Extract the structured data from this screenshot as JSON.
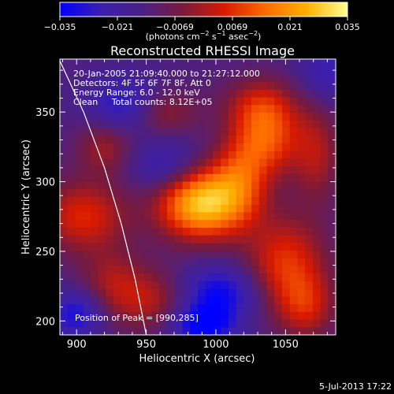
{
  "chart_data": {
    "type": "heatmap",
    "title": "Reconstructed RHESSI Image",
    "xlabel": "Heliocentric X (arcsec)",
    "ylabel": "Heliocentric Y (arcsec)",
    "xlim": [
      888,
      1086
    ],
    "ylim": [
      190,
      388
    ],
    "x_ticks": [
      900,
      950,
      1000,
      1050
    ],
    "y_ticks": [
      200,
      250,
      300,
      350
    ],
    "colorbar": {
      "range": [
        -0.035,
        0.035
      ],
      "ticks": [
        "−0.035",
        "−0.021",
        "−0.0069",
        "0.0069",
        "0.021",
        "0.035"
      ],
      "label_main": "(photons cm",
      "label_exp1": "−2",
      "label_mid": " s",
      "label_exp2": "−1",
      "label_end": " asec",
      "label_exp3": "−2",
      "label_close": ")",
      "colors": [
        "#0000ff",
        "#3b1fb0",
        "#4a2086",
        "#7a1a3a",
        "#d91a00",
        "#ff6a00",
        "#ffb000",
        "#ffff90"
      ]
    },
    "info_lines": [
      "20-Jan-2005 21:09:40.000 to 21:27:12.000",
      "Detectors: 4F 5F 6F 7F 8F, Att 0",
      "Energy Range: 6.0 - 12.0 keV",
      "Clean     Total counts: 8.12E+05"
    ],
    "peak_label": "Position of Peak = [990,285]",
    "peak": [
      990,
      285
    ],
    "limb_curve": [
      [
        886,
        391
      ],
      [
        905,
        350
      ],
      [
        920,
        310
      ],
      [
        932,
        270
      ],
      [
        942,
        230
      ],
      [
        950,
        190
      ]
    ],
    "blobs": [
      {
        "x": 990,
        "y": 285,
        "amp": 0.043,
        "sx": 22,
        "sy": 18
      },
      {
        "x": 1018,
        "y": 305,
        "amp": 0.018,
        "sx": 14,
        "sy": 22
      },
      {
        "x": 1038,
        "y": 330,
        "amp": 0.022,
        "sx": 16,
        "sy": 18
      },
      {
        "x": 1032,
        "y": 355,
        "amp": 0.016,
        "sx": 18,
        "sy": 14
      },
      {
        "x": 1050,
        "y": 240,
        "amp": 0.022,
        "sx": 20,
        "sy": 24
      },
      {
        "x": 1065,
        "y": 210,
        "amp": 0.015,
        "sx": 14,
        "sy": 16
      },
      {
        "x": 1072,
        "y": 320,
        "amp": 0.014,
        "sx": 12,
        "sy": 25
      },
      {
        "x": 955,
        "y": 215,
        "amp": 0.016,
        "sx": 25,
        "sy": 16
      },
      {
        "x": 905,
        "y": 275,
        "amp": 0.02,
        "sx": 22,
        "sy": 18
      },
      {
        "x": 925,
        "y": 230,
        "amp": 0.01,
        "sx": 16,
        "sy": 16
      },
      {
        "x": 920,
        "y": 325,
        "amp": 0.013,
        "sx": 14,
        "sy": 14
      },
      {
        "x": 960,
        "y": 350,
        "amp": 0.014,
        "sx": 18,
        "sy": 12
      },
      {
        "x": 965,
        "y": 310,
        "amp": -0.014,
        "sx": 18,
        "sy": 14
      },
      {
        "x": 935,
        "y": 355,
        "amp": -0.018,
        "sx": 18,
        "sy": 14
      },
      {
        "x": 1000,
        "y": 220,
        "amp": -0.022,
        "sx": 22,
        "sy": 14
      },
      {
        "x": 990,
        "y": 197,
        "amp": -0.024,
        "sx": 16,
        "sy": 10
      },
      {
        "x": 900,
        "y": 205,
        "amp": -0.018,
        "sx": 14,
        "sy": 12
      },
      {
        "x": 1080,
        "y": 380,
        "amp": -0.012,
        "sx": 14,
        "sy": 16
      }
    ]
  },
  "footer": {
    "date": "5-Jul-2013 17:22"
  }
}
